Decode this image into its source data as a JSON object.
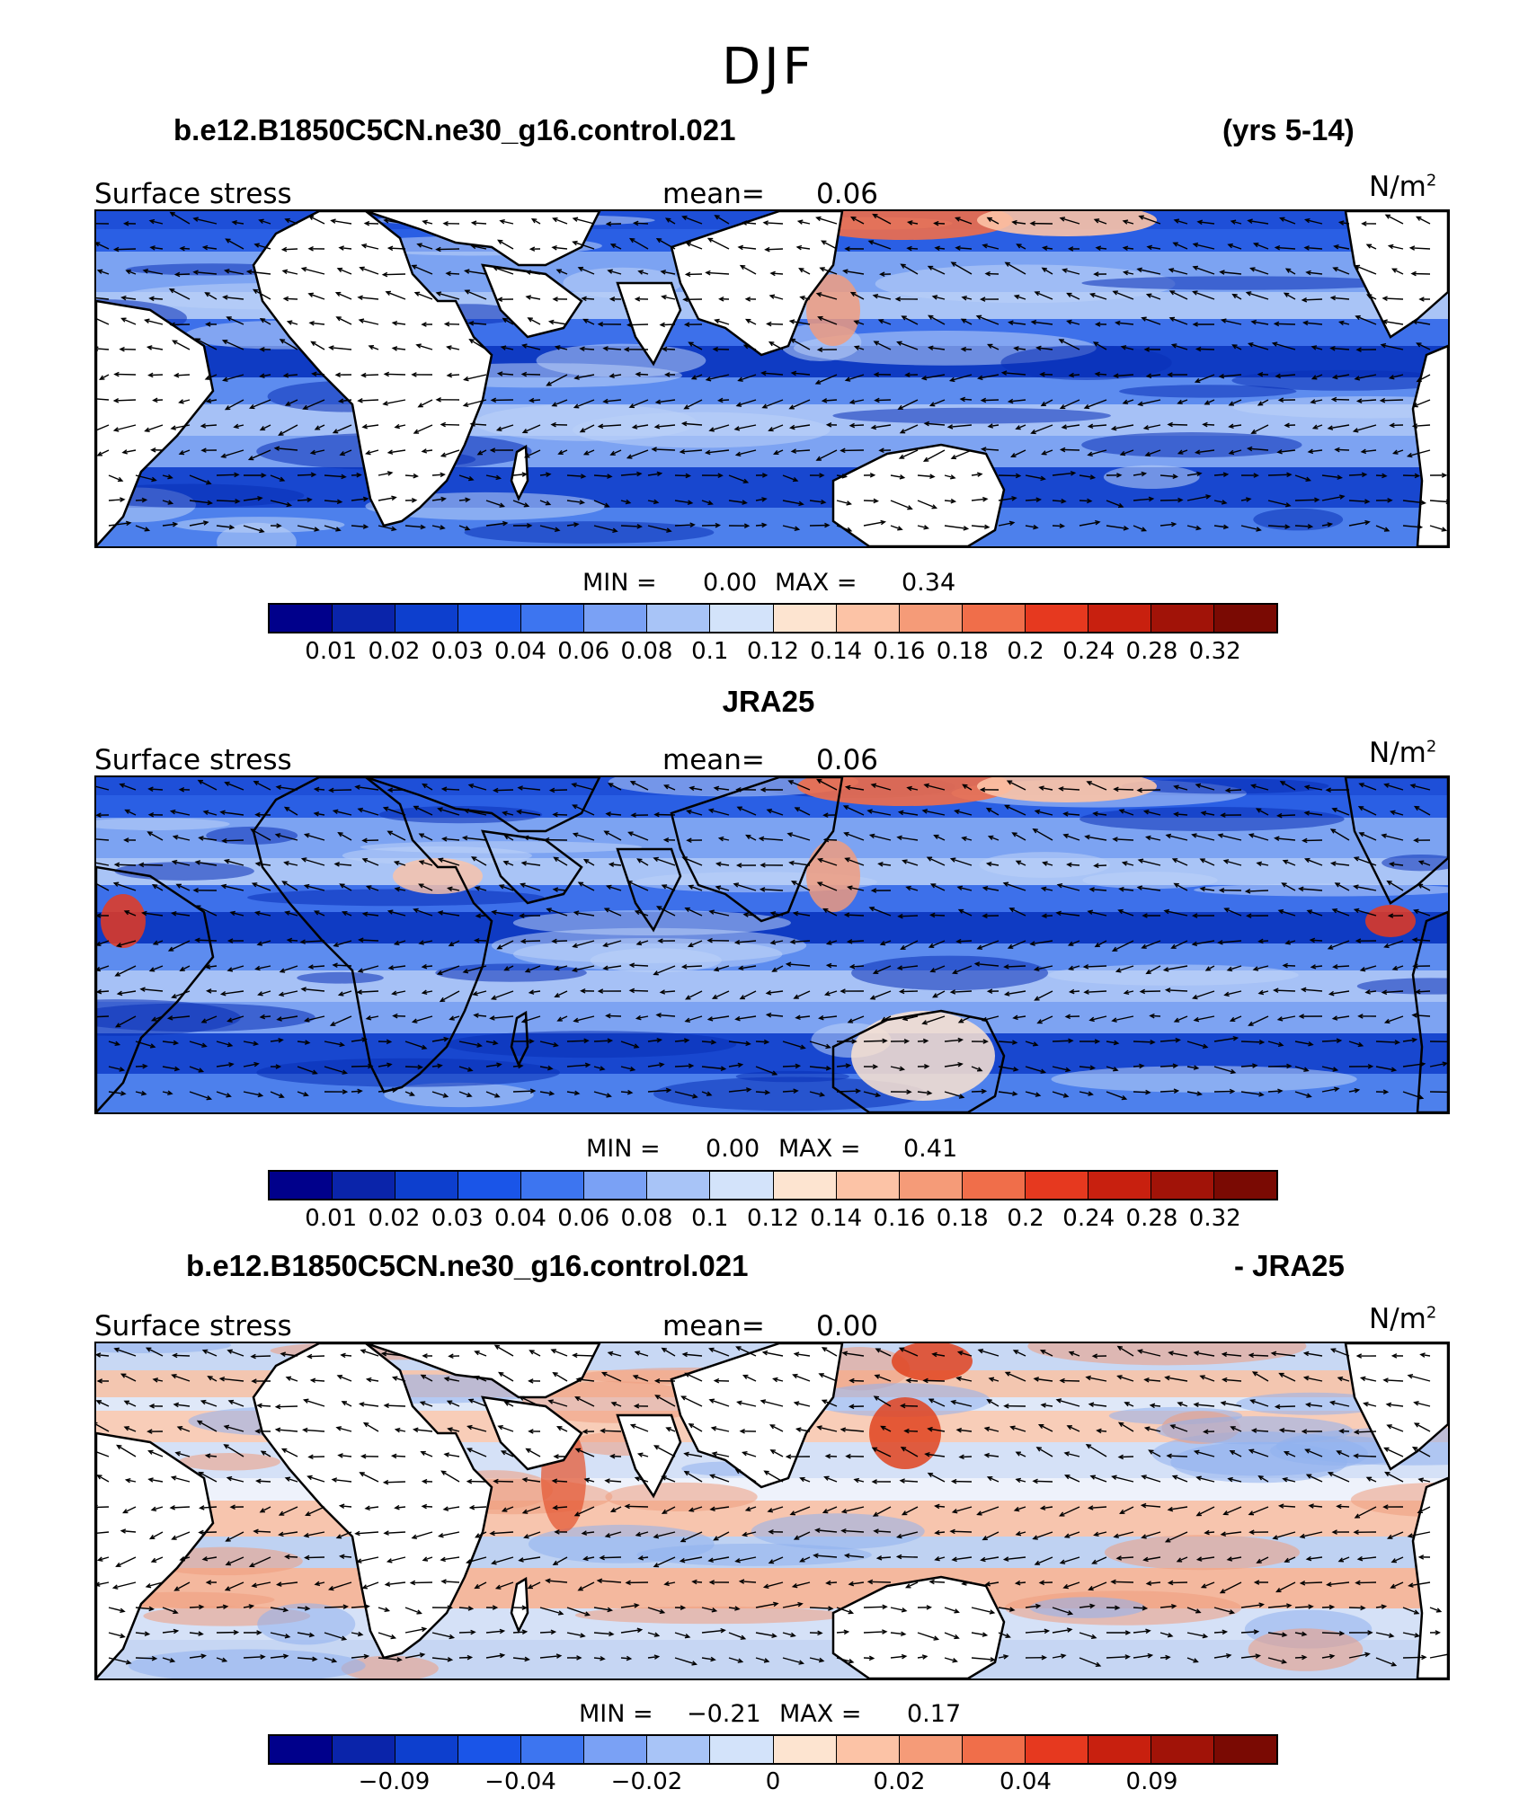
{
  "figure": {
    "title": "DJF"
  },
  "panels": [
    {
      "title_left": "b.e12.B1850C5CN.ne30_g16.control.021",
      "title_right": "(yrs 5-14)",
      "field_label": "Surface stress",
      "mean_label": "mean=",
      "mean_value": "0.06",
      "units": "N/m",
      "units_sup": "2",
      "min_label": "MIN =",
      "min_value": "0.00",
      "max_label": "MAX =",
      "max_value": "0.34",
      "style": "full",
      "colorbar": {
        "colors": [
          "#00008b",
          "#0a24aa",
          "#0d3fce",
          "#1a55e8",
          "#3d75f0",
          "#7aa1f5",
          "#a8c4f7",
          "#d3e3fa",
          "#fde4d0",
          "#fcc3a6",
          "#f59b78",
          "#f06e4a",
          "#e6391f",
          "#c8200f",
          "#a11308",
          "#7a0a03"
        ],
        "labels": [
          "0.01",
          "0.02",
          "0.03",
          "0.04",
          "0.06",
          "0.08",
          "0.1",
          "0.12",
          "0.14",
          "0.16",
          "0.18",
          "0.2",
          "0.24",
          "0.28",
          "0.32"
        ],
        "label_boundaries": [
          1,
          2,
          3,
          4,
          5,
          6,
          7,
          8,
          9,
          10,
          11,
          12,
          13,
          14,
          15
        ]
      }
    },
    {
      "title_center": "JRA25",
      "field_label": "Surface stress",
      "mean_label": "mean=",
      "mean_value": "0.06",
      "units": "N/m",
      "units_sup": "2",
      "min_label": "MIN =",
      "min_value": "0.00",
      "max_label": "MAX =",
      "max_value": "0.41",
      "style": "full-land",
      "colorbar": {
        "colors": [
          "#00008b",
          "#0a24aa",
          "#0d3fce",
          "#1a55e8",
          "#3d75f0",
          "#7aa1f5",
          "#a8c4f7",
          "#d3e3fa",
          "#fde4d0",
          "#fcc3a6",
          "#f59b78",
          "#f06e4a",
          "#e6391f",
          "#c8200f",
          "#a11308",
          "#7a0a03"
        ],
        "labels": [
          "0.01",
          "0.02",
          "0.03",
          "0.04",
          "0.06",
          "0.08",
          "0.1",
          "0.12",
          "0.14",
          "0.16",
          "0.18",
          "0.2",
          "0.24",
          "0.28",
          "0.32"
        ],
        "label_boundaries": [
          1,
          2,
          3,
          4,
          5,
          6,
          7,
          8,
          9,
          10,
          11,
          12,
          13,
          14,
          15
        ]
      }
    },
    {
      "title_left": "b.e12.B1850C5CN.ne30_g16.control.021",
      "title_right": "- JRA25",
      "field_label": "Surface stress",
      "mean_label": "mean=",
      "mean_value": "0.00",
      "units": "N/m",
      "units_sup": "2",
      "min_label": "MIN =",
      "min_value": "−0.21",
      "max_label": "MAX =",
      "max_value": "0.17",
      "style": "diff",
      "colorbar": {
        "colors": [
          "#00008b",
          "#0a24aa",
          "#0d3fce",
          "#1a55e8",
          "#3d75f0",
          "#7aa1f5",
          "#a8c4f7",
          "#d3e3fa",
          "#fde4d0",
          "#fcc3a6",
          "#f59b78",
          "#f06e4a",
          "#e6391f",
          "#c8200f",
          "#a11308",
          "#7a0a03"
        ],
        "labels": [
          "−0.09",
          "−0.04",
          "−0.02",
          "0",
          "0.02",
          "0.04",
          "0.09"
        ],
        "label_boundaries": [
          2,
          4,
          6,
          8,
          10,
          12,
          14
        ]
      }
    }
  ]
}
